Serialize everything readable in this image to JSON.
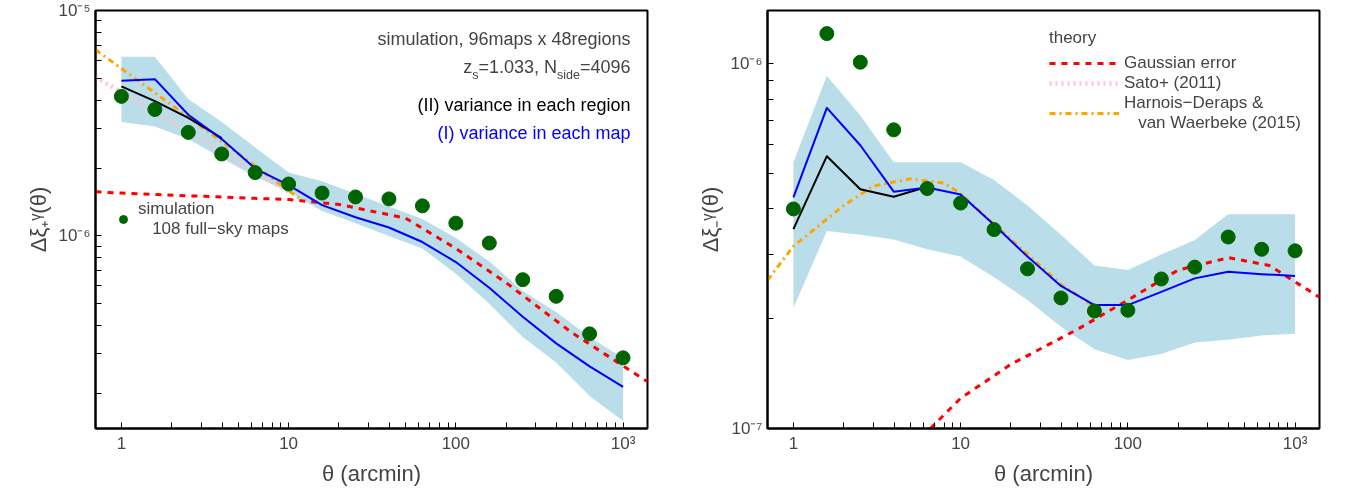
{
  "chart_data": [
    {
      "type": "line",
      "xlabel": "θ (arcmin)",
      "ylabel": "Δξ₊ᵞ(θ)",
      "log": "xy",
      "grid": false,
      "xlim": [
        0.7,
        1400
      ],
      "ylim": [
        1.4e-07,
        1e-05
      ],
      "xticks": [
        1,
        10,
        100,
        {
          "value": 1000,
          "label": "10³"
        },
        {
          "value": 2,
          "label": null
        },
        {
          "value": 3,
          "label": null
        },
        {
          "value": 4,
          "label": null
        },
        {
          "value": 5,
          "label": null
        },
        {
          "value": 6,
          "label": null
        },
        {
          "value": 7,
          "label": null
        },
        {
          "value": 8,
          "label": null
        },
        {
          "value": 9,
          "label": null
        },
        {
          "value": 20,
          "label": null
        },
        {
          "value": 30,
          "label": null
        },
        {
          "value": 40,
          "label": null
        },
        {
          "value": 50,
          "label": null
        },
        {
          "value": 60,
          "label": null
        },
        {
          "value": 70,
          "label": null
        },
        {
          "value": 80,
          "label": null
        },
        {
          "value": 90,
          "label": null
        },
        {
          "value": 200,
          "label": null
        },
        {
          "value": 300,
          "label": null
        },
        {
          "value": 400,
          "label": null
        },
        {
          "value": 500,
          "label": null
        },
        {
          "value": 600,
          "label": null
        },
        {
          "value": 700,
          "label": null
        },
        {
          "value": 800,
          "label": null
        },
        {
          "value": 900,
          "label": null
        }
      ],
      "yticks": [
        {
          "value": 1e-05,
          "label": "10⁻⁵"
        },
        {
          "value": 1e-06,
          "label": "10⁻⁶"
        },
        {
          "value": 2e-07,
          "label": null
        },
        {
          "value": 3e-07,
          "label": null
        },
        {
          "value": 4e-07,
          "label": null
        },
        {
          "value": 5e-07,
          "label": null
        },
        {
          "value": 6e-07,
          "label": null
        },
        {
          "value": 7e-07,
          "label": null
        },
        {
          "value": 8e-07,
          "label": null
        },
        {
          "value": 9e-07,
          "label": null
        },
        {
          "value": 2e-06,
          "label": null
        },
        {
          "value": 3e-06,
          "label": null
        },
        {
          "value": 4e-06,
          "label": null
        },
        {
          "value": 5e-06,
          "label": null
        },
        {
          "value": 6e-06,
          "label": null
        },
        {
          "value": 7e-06,
          "label": null
        },
        {
          "value": 8e-06,
          "label": null
        },
        {
          "value": 9e-06,
          "label": null
        }
      ],
      "legend": "left",
      "annotations": [
        "simulation, 96maps x 48regions",
        "z$_{s}$=1.033, N$_{side}$=4096"
      ],
      "x": [
        1,
        1.585,
        2.512,
        3.981,
        6.31,
        10,
        15.85,
        25.12,
        39.81,
        63.1,
        100,
        158.5,
        251.2,
        398.1,
        631,
        1000
      ],
      "series": [
        {
          "name": "(I) variance in each map",
          "color": "#0000ff",
          "values": [
            4.88e-06,
            4.96e-06,
            3.45e-06,
            2.69e-06,
            1.99e-06,
            1.68e-06,
            1.37e-06,
            1.21e-06,
            1.09e-06,
            9.4e-07,
            7.66e-07,
            5.89e-07,
            4.38e-07,
            3.34e-07,
            2.64e-07,
            2.14e-07
          ],
          "lower": [
            3.2e-06,
            3.06e-06,
            2.69e-06,
            2.22e-06,
            1.83e-06,
            1.57e-06,
            1.29e-06,
            1.14e-06,
            1e-06,
            8.8e-07,
            6.8e-07,
            5e-07,
            3.56e-07,
            2.75e-07,
            1.95e-07,
            1.51e-07
          ],
          "upper": [
            6.23e-06,
            6.23e-06,
            4.05e-06,
            3.2e-06,
            2.47e-06,
            1.91e-06,
            1.75e-06,
            1.54e-06,
            1.35e-06,
            1.19e-06,
            9.8e-07,
            7.7e-07,
            5.7e-07,
            4.6e-07,
            3.56e-07,
            2.87e-07
          ]
        },
        {
          "color": "#ff0000",
          "line_style": "dashed",
          "x": [
            0.7,
            1,
            3,
            10,
            20,
            50,
            100,
            200,
            500,
            1400
          ],
          "values": [
            1.57e-06,
            1.55e-06,
            1.5e-06,
            1.45e-06,
            1.38e-06,
            1.2e-06,
            8.8e-07,
            6.2e-07,
            3.7e-07,
            2.26e-07
          ]
        },
        {
          "color": "#ffc0cb",
          "line_style": "dotted",
          "x": [
            0.7,
            3,
            10
          ],
          "values": [
            5.07e-06,
            2.69e-06,
            1.57e-06
          ]
        },
        {
          "color": "#ffa500",
          "line_style": "dashdot",
          "x": [
            0.7,
            3,
            12
          ],
          "values": [
            6.7e-06,
            3.06e-06,
            1.44e-06
          ]
        },
        {
          "name": "(II) variance in each region",
          "color": "#000000",
          "values": [
            4.61e-06,
            3.96e-06,
            3.34e-06,
            2.72e-06,
            null,
            null,
            null,
            null,
            null,
            null,
            null,
            null,
            null,
            null,
            null,
            null
          ]
        },
        {
          "type": "scatter",
          "marker": "circle",
          "name": "simulation\n   108 full−sky maps",
          "color": "#006400",
          "values": [
            4.16e-06,
            3.64e-06,
            2.88e-06,
            2.31e-06,
            1.91e-06,
            1.7e-06,
            1.55e-06,
            1.49e-06,
            1.46e-06,
            1.36e-06,
            1.14e-06,
            9.3e-07,
            6.4e-07,
            5.4e-07,
            3.68e-07,
            2.88e-07
          ]
        }
      ]
    },
    {
      "type": "line",
      "xlabel": "θ (arcmin)",
      "ylabel": "Δξ₋ᵞ(θ)",
      "log": "xy",
      "grid": false,
      "xlim": [
        0.7,
        1400
      ],
      "ylim": [
        1e-07,
        1.4e-06
      ],
      "xticks": [
        1,
        10,
        100,
        {
          "value": 1000,
          "label": "10³"
        },
        {
          "value": 2,
          "label": null
        },
        {
          "value": 3,
          "label": null
        },
        {
          "value": 4,
          "label": null
        },
        {
          "value": 5,
          "label": null
        },
        {
          "value": 6,
          "label": null
        },
        {
          "value": 7,
          "label": null
        },
        {
          "value": 8,
          "label": null
        },
        {
          "value": 9,
          "label": null
        },
        {
          "value": 20,
          "label": null
        },
        {
          "value": 30,
          "label": null
        },
        {
          "value": 40,
          "label": null
        },
        {
          "value": 50,
          "label": null
        },
        {
          "value": 60,
          "label": null
        },
        {
          "value": 70,
          "label": null
        },
        {
          "value": 80,
          "label": null
        },
        {
          "value": 90,
          "label": null
        },
        {
          "value": 200,
          "label": null
        },
        {
          "value": 300,
          "label": null
        },
        {
          "value": 400,
          "label": null
        },
        {
          "value": 500,
          "label": null
        },
        {
          "value": 600,
          "label": null
        },
        {
          "value": 700,
          "label": null
        },
        {
          "value": 800,
          "label": null
        },
        {
          "value": 900,
          "label": null
        }
      ],
      "yticks": [
        {
          "value": 1e-06,
          "label": "10⁻⁶"
        },
        {
          "value": 1e-07,
          "label": "10⁻⁷"
        },
        {
          "value": 2e-07,
          "label": null
        },
        {
          "value": 3e-07,
          "label": null
        },
        {
          "value": 4e-07,
          "label": null
        },
        {
          "value": 5e-07,
          "label": null
        },
        {
          "value": 6e-07,
          "label": null
        },
        {
          "value": 7e-07,
          "label": null
        },
        {
          "value": 8e-07,
          "label": null
        },
        {
          "value": 9e-07,
          "label": null
        }
      ],
      "legend": "top right",
      "legend_title": "theory",
      "x": [
        1,
        1.585,
        2.512,
        3.981,
        6.31,
        10,
        15.85,
        25.12,
        39.81,
        63.1,
        100,
        158.5,
        251.2,
        398.1,
        631,
        1000
      ],
      "series": [
        {
          "color": "#0000ff",
          "values": [
            4.3e-07,
            7.57e-07,
            5.98e-07,
            4.46e-07,
            4.58e-07,
            4.38e-07,
            3.62e-07,
            2.96e-07,
            2.46e-07,
            2.18e-07,
            2.18e-07,
            2.37e-07,
            2.58e-07,
            2.69e-07,
            2.65e-07,
            2.62e-07
          ],
          "lower": [
            2.14e-07,
            3.48e-07,
            3.4e-07,
            3.3e-07,
            3.1e-07,
            2.96e-07,
            2.6e-07,
            2.25e-07,
            1.9e-07,
            1.65e-07,
            1.54e-07,
            1.6e-07,
            1.72e-07,
            1.75e-07,
            1.8e-07,
            1.82e-07
          ],
          "upper": [
            5.37e-07,
            9.27e-07,
            7.22e-07,
            5.37e-07,
            5.37e-07,
            5.37e-07,
            4.8e-07,
            4.09e-07,
            3.4e-07,
            2.8e-07,
            2.72e-07,
            3e-07,
            3.29e-07,
            3.87e-07,
            3.87e-07,
            3.87e-07
          ]
        },
        {
          "name": "Gaussian error",
          "color": "#ff0000",
          "line_style": "dashed",
          "x": [
            6.6,
            10,
            20,
            50,
            100,
            200,
            400,
            700,
            1400
          ],
          "values": [
            1e-07,
            1.21e-07,
            1.5e-07,
            1.87e-07,
            2.25e-07,
            2.72e-07,
            2.94e-07,
            2.8e-07,
            2.29e-07
          ]
        },
        {
          "name": "Sato+ (2011)",
          "color": "#ffc0cb",
          "line_style": "dotted",
          "values": [
            null,
            null,
            null,
            null,
            null,
            null,
            null,
            null,
            null,
            null,
            null,
            null,
            null,
            null,
            null,
            null
          ]
        },
        {
          "name": "Harnois−Deraps &\n   van Waerbeke (2015)",
          "color": "#ffa500",
          "line_style": "dashdot",
          "x": [
            0.7,
            1,
            2,
            3,
            5,
            8,
            10,
            20,
            40,
            63
          ],
          "values": [
            2.55e-07,
            3.16e-07,
            4.09e-07,
            4.62e-07,
            4.84e-07,
            4.71e-07,
            4.4e-07,
            3.3e-07,
            2.48e-07,
            2.16e-07
          ]
        },
        {
          "color": "#000000",
          "values": [
            3.52e-07,
            5.58e-07,
            4.53e-07,
            4.32e-07,
            4.6e-07,
            null,
            null,
            null,
            null,
            null,
            null,
            null,
            null,
            null,
            null,
            null
          ]
        },
        {
          "type": "scatter",
          "marker": "circle",
          "color": "#006400",
          "values": [
            4e-07,
            1.21e-06,
            1.01e-06,
            6.59e-07,
            4.55e-07,
            4.15e-07,
            3.51e-07,
            2.74e-07,
            2.28e-07,
            2.1e-07,
            2.11e-07,
            2.57e-07,
            2.77e-07,
            3.35e-07,
            3.1e-07,
            3.07e-07
          ]
        }
      ]
    }
  ]
}
